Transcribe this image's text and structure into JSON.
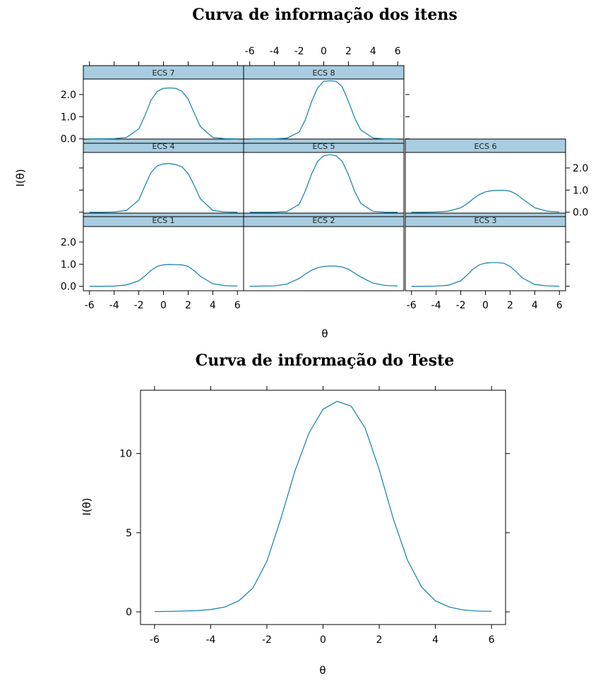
{
  "chart_data": [
    {
      "type": "line",
      "title": "Curva de informação dos itens",
      "xlabel": "θ",
      "ylabel": "I(θ)",
      "xlim": [
        -6.5,
        6.5
      ],
      "ylim": [
        -0.2,
        2.7
      ],
      "x_ticks": [
        -6,
        -4,
        -2,
        0,
        2,
        4,
        6
      ],
      "x_tick_labels": [
        "-6",
        "-4",
        "-2",
        "0",
        "2",
        "4",
        "6"
      ],
      "y_ticks": [
        0.0,
        1.0,
        2.0
      ],
      "y_tick_labels": [
        "0.0",
        "1.0",
        "2.0"
      ],
      "panels": [
        {
          "name": "ECS 1",
          "x": [
            -6,
            -5,
            -4,
            -3,
            -2,
            -1.5,
            -1,
            -0.5,
            0,
            0.5,
            1,
            1.5,
            2,
            2.5,
            3,
            4,
            5,
            6
          ],
          "y": [
            0,
            0,
            0.01,
            0.06,
            0.25,
            0.47,
            0.72,
            0.9,
            0.97,
            0.99,
            0.98,
            0.97,
            0.9,
            0.7,
            0.45,
            0.12,
            0.03,
            0.01
          ]
        },
        {
          "name": "ECS 2",
          "x": [
            -6,
            -5,
            -4,
            -3,
            -2,
            -1.5,
            -1,
            -0.5,
            0,
            0.5,
            1,
            1.5,
            2,
            2.5,
            3,
            4,
            5,
            6
          ],
          "y": [
            0,
            0.01,
            0.02,
            0.1,
            0.35,
            0.55,
            0.72,
            0.84,
            0.9,
            0.92,
            0.91,
            0.87,
            0.77,
            0.6,
            0.42,
            0.14,
            0.04,
            0.01
          ]
        },
        {
          "name": "ECS 3",
          "x": [
            -6,
            -5,
            -4,
            -3,
            -2,
            -1.5,
            -1,
            -0.5,
            0,
            0.5,
            1,
            1.5,
            2,
            2.5,
            3,
            4,
            5,
            6
          ],
          "y": [
            0,
            0,
            0.01,
            0.05,
            0.25,
            0.5,
            0.78,
            0.97,
            1.05,
            1.07,
            1.07,
            1.04,
            0.9,
            0.65,
            0.38,
            0.08,
            0.02,
            0
          ]
        },
        {
          "name": "ECS 4",
          "x": [
            -6,
            -5,
            -4,
            -3,
            -2,
            -1.5,
            -1,
            -0.5,
            0,
            0.5,
            1,
            1.5,
            2,
            2.5,
            3,
            4,
            5,
            6
          ],
          "y": [
            0,
            0,
            0.01,
            0.08,
            0.55,
            1.2,
            1.8,
            2.1,
            2.18,
            2.2,
            2.15,
            2.05,
            1.75,
            1.2,
            0.6,
            0.08,
            0.01,
            0
          ]
        },
        {
          "name": "ECS 5",
          "x": [
            -6,
            -5,
            -4,
            -3,
            -2,
            -1.5,
            -1,
            -0.5,
            0,
            0.5,
            1,
            1.5,
            2,
            2.5,
            3,
            4,
            5,
            6
          ],
          "y": [
            0,
            0,
            0,
            0.03,
            0.35,
            0.95,
            1.7,
            2.3,
            2.55,
            2.6,
            2.55,
            2.3,
            1.7,
            0.95,
            0.4,
            0.04,
            0,
            0
          ]
        },
        {
          "name": "ECS 6",
          "x": [
            -6,
            -5,
            -4,
            -3,
            -2,
            -1.5,
            -1,
            -0.5,
            0,
            0.5,
            1,
            1.5,
            2,
            2.5,
            3,
            4,
            5,
            6
          ],
          "y": [
            0,
            0,
            0.01,
            0.05,
            0.2,
            0.38,
            0.6,
            0.8,
            0.92,
            0.97,
            0.99,
            0.99,
            0.95,
            0.82,
            0.6,
            0.2,
            0.05,
            0.01
          ]
        },
        {
          "name": "ECS 7",
          "x": [
            -6,
            -5,
            -4,
            -3,
            -2,
            -1.5,
            -1,
            -0.5,
            0,
            0.5,
            1,
            1.5,
            2,
            2.5,
            3,
            4,
            5,
            6
          ],
          "y": [
            0,
            0,
            0.01,
            0.06,
            0.45,
            1.05,
            1.75,
            2.15,
            2.28,
            2.3,
            2.28,
            2.15,
            1.8,
            1.15,
            0.55,
            0.06,
            0.01,
            0
          ]
        },
        {
          "name": "ECS 8",
          "x": [
            -6,
            -5,
            -4,
            -3,
            -2,
            -1.5,
            -1,
            -0.5,
            0,
            0.5,
            1,
            1.5,
            2,
            2.5,
            3,
            4,
            5,
            6
          ],
          "y": [
            0,
            0,
            0,
            0.03,
            0.3,
            0.85,
            1.65,
            2.3,
            2.6,
            2.62,
            2.6,
            2.35,
            1.7,
            0.95,
            0.4,
            0.04,
            0,
            0
          ]
        }
      ]
    },
    {
      "type": "line",
      "title": "Curva de informação do Teste",
      "xlabel": "θ",
      "ylabel": "I(θ)",
      "xlim": [
        -6.5,
        6.5
      ],
      "ylim": [
        -0.8,
        14.0
      ],
      "x_ticks": [
        -6,
        -4,
        -2,
        0,
        2,
        4,
        6
      ],
      "x_tick_labels": [
        "-6",
        "-4",
        "-2",
        "0",
        "2",
        "4",
        "6"
      ],
      "y_ticks": [
        0,
        5,
        10
      ],
      "y_tick_labels": [
        "0",
        "5",
        "10"
      ],
      "x": [
        -6,
        -5.5,
        -5,
        -4.5,
        -4,
        -3.5,
        -3,
        -2.5,
        -2,
        -1.5,
        -1,
        -0.5,
        0,
        0.5,
        1,
        1.5,
        2,
        2.5,
        3,
        3.5,
        4,
        4.5,
        5,
        5.5,
        6
      ],
      "y": [
        0.02,
        0.03,
        0.05,
        0.08,
        0.15,
        0.3,
        0.7,
        1.5,
        3.2,
        5.9,
        8.9,
        11.3,
        12.8,
        13.3,
        13.0,
        11.6,
        9.0,
        5.9,
        3.3,
        1.6,
        0.7,
        0.3,
        0.12,
        0.05,
        0.03
      ]
    }
  ]
}
